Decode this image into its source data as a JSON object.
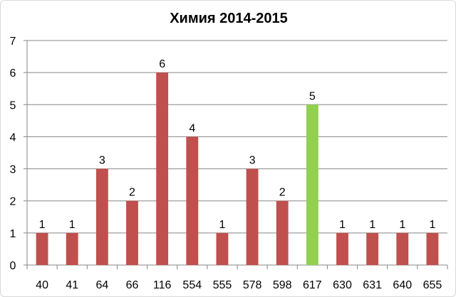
{
  "chart_data": {
    "type": "bar",
    "title": "Химия 2014-2015",
    "xlabel": "",
    "ylabel": "",
    "categories": [
      "40",
      "41",
      "64",
      "66",
      "116",
      "554",
      "555",
      "578",
      "598",
      "617",
      "630",
      "631",
      "640",
      "655"
    ],
    "values": [
      1,
      1,
      3,
      2,
      6,
      4,
      1,
      3,
      2,
      5,
      1,
      1,
      1,
      1
    ],
    "ylim": [
      0,
      7
    ],
    "yticks": [
      "0",
      "1",
      "2",
      "3",
      "4",
      "5",
      "6",
      "7"
    ],
    "grid": true,
    "legend": "none",
    "data_labels": true,
    "colors": {
      "default_bar": "#C0504D",
      "highlight_bar": "#92D050",
      "gridline": "#878787",
      "axis": "#878787"
    },
    "highlight_category": "617"
  }
}
